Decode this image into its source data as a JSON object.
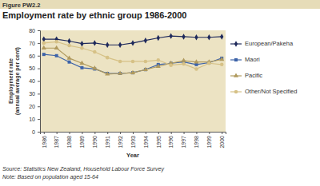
{
  "chart_data": {
    "type": "line",
    "figure_label": "Figure PW2.2",
    "title": "Employment rate by ethnic group 1986-2000",
    "x_label": "Year",
    "y_label": [
      "Employment rate",
      "(annual average per cent)"
    ],
    "source": "Source: Statistics New Zealand, Household Labour Force Survey",
    "note": "Note: Based on population aged 15-64",
    "x": [
      1986,
      1987,
      1988,
      1989,
      1990,
      1991,
      1992,
      1993,
      1994,
      1995,
      1996,
      1997,
      1998,
      1999,
      2000
    ],
    "xlim": [
      1985.7,
      2000.3
    ],
    "xticks": [
      1986,
      1987,
      1988,
      1989,
      1990,
      1991,
      1992,
      1993,
      1994,
      1995,
      1996,
      1997,
      1998,
      1999,
      2000
    ],
    "ylim": [
      0,
      80
    ],
    "yticks": [
      0,
      10,
      20,
      30,
      40,
      50,
      60,
      70,
      80
    ],
    "grid": false,
    "legend": "right",
    "series": [
      {
        "name": "European/Pakeha",
        "color": "#1f2a5c",
        "marker": "diamond",
        "values": [
          73,
          73,
          71.5,
          69.5,
          70,
          68.5,
          68.5,
          70,
          72,
          74,
          75.5,
          75,
          74.5,
          74.5,
          75
        ]
      },
      {
        "name": "Maori",
        "color": "#3d63a8",
        "marker": "square",
        "values": [
          61,
          60,
          55,
          50.5,
          49.5,
          46,
          46,
          46.5,
          49,
          53,
          54,
          55,
          53,
          54.5,
          58
        ]
      },
      {
        "name": "Pacific",
        "color": "#b09a5e",
        "marker": "triangle",
        "values": [
          66,
          66,
          58,
          54,
          50,
          45.5,
          46,
          46.5,
          49,
          51.5,
          54,
          56,
          55,
          55,
          57
        ]
      },
      {
        "name": "Other/Not Specified",
        "color": "#d6c186",
        "marker": "circle",
        "values": [
          70,
          71,
          68,
          66,
          63,
          58.5,
          55.5,
          55.5,
          55.5,
          56.5,
          52.5,
          53.5,
          49.5,
          54,
          53
        ]
      }
    ]
  }
}
